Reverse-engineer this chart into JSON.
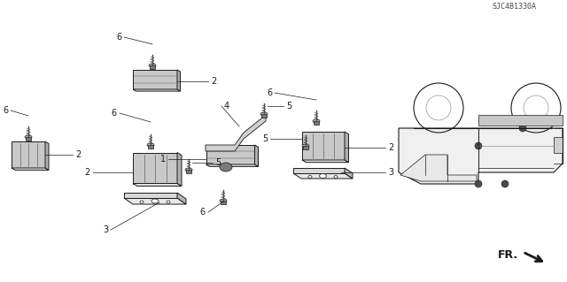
{
  "bg_color": "#ffffff",
  "line_color": "#1a1a1a",
  "gray_dark": "#4a4a4a",
  "gray_mid": "#7a7a7a",
  "gray_light": "#c0c0c0",
  "gray_fill": "#d8d8d8",
  "fig_width": 6.4,
  "fig_height": 3.19,
  "dpi": 100,
  "font_size_label": 7,
  "font_size_ref": 6,
  "part_num_ref": "SJC4B1330A"
}
